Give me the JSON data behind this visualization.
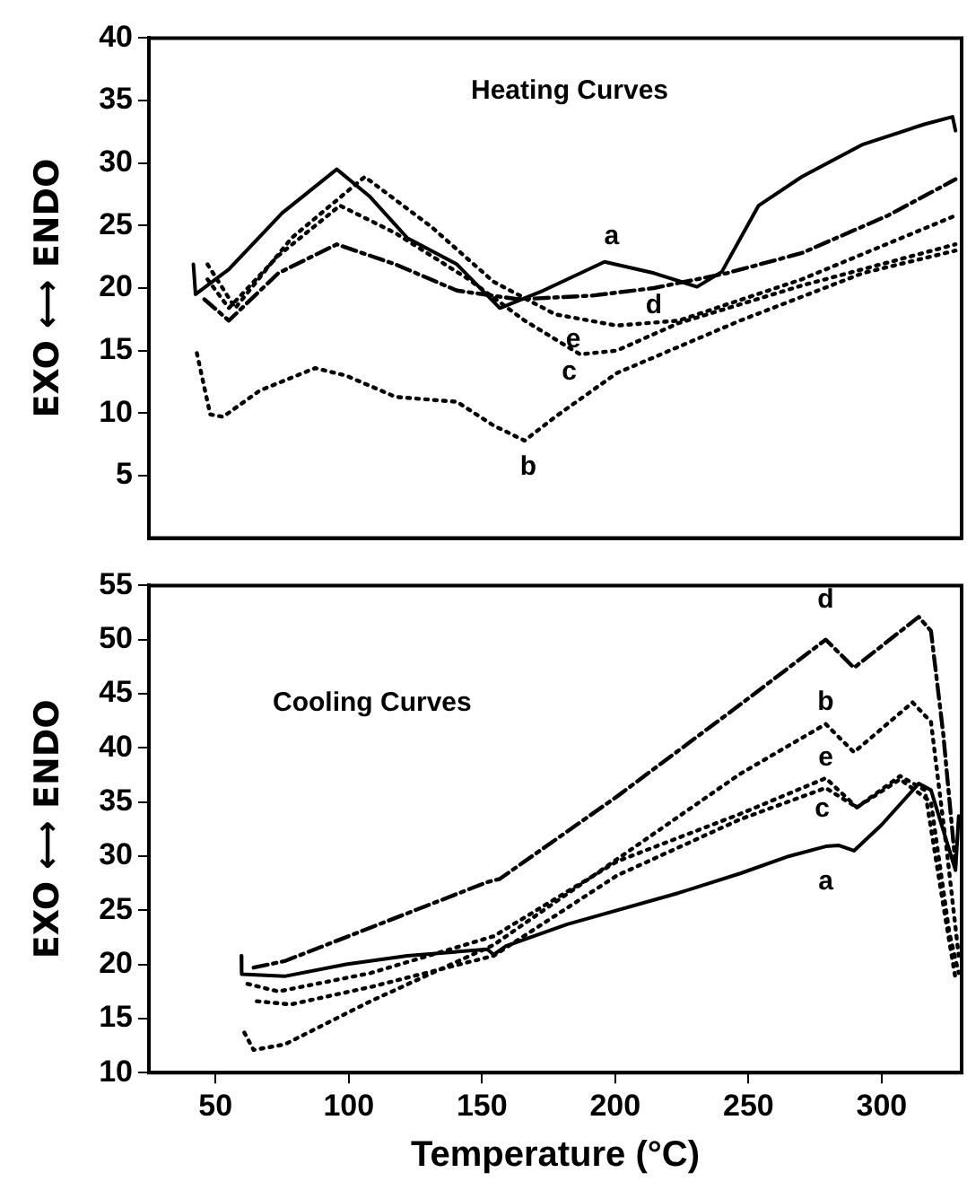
{
  "chart_data": [
    {
      "type": "line",
      "title": "Heating Curves",
      "ylabel": "EXO ⟷ ENDO",
      "xlim": [
        25,
        330
      ],
      "xticks": [
        50,
        100,
        150,
        200,
        250,
        300
      ],
      "ylim": [
        0,
        40
      ],
      "yticks": [
        5,
        10,
        15,
        20,
        25,
        30,
        35,
        40
      ],
      "tick_labels": "y",
      "grid": false,
      "legend": false,
      "marker": "none",
      "series": [
        {
          "name": "a",
          "color": "#000000",
          "line_style": "solid",
          "x": [
            41.7,
            42.5,
            55,
            75,
            95.5,
            108,
            122,
            140.6,
            156.7,
            173,
            196,
            214.5,
            230.7,
            240,
            253.8,
            270,
            293,
            316,
            326.6,
            327.7
          ],
          "values": [
            21.9,
            19.5,
            21.5,
            26,
            29.5,
            27.3,
            24,
            21.9,
            18.4,
            19.8,
            22.1,
            21.2,
            20.1,
            21.3,
            26.6,
            28.9,
            31.5,
            33.1,
            33.7,
            32.6
          ]
        },
        {
          "name": "b",
          "color": "#000000",
          "line_style": "dotted",
          "x": [
            43,
            48,
            52.8,
            66.6,
            87.4,
            99,
            117.5,
            140.6,
            154.4,
            166,
            177.5,
            200.6,
            246.9,
            293,
            327.7
          ],
          "values": [
            14.8,
            9.9,
            9.7,
            11.8,
            13.6,
            13,
            11.3,
            10.9,
            9,
            7.8,
            9.7,
            13.2,
            17.4,
            21.2,
            23
          ]
        },
        {
          "name": "c",
          "color": "#000000",
          "line_style": "dotted",
          "x": [
            47,
            55,
            73.6,
            96.7,
            117.5,
            145,
            166,
            186.8,
            200.6,
            223.8,
            270,
            327.7
          ],
          "values": [
            20.7,
            18.4,
            22.6,
            26.6,
            24.4,
            20.7,
            17.4,
            14.7,
            15,
            17.2,
            20.2,
            23.5
          ]
        },
        {
          "name": "d",
          "color": "#000000",
          "line_style": "dashdot",
          "x": [
            45.8,
            55,
            73.6,
            95.5,
            117.5,
            140.6,
            163.7,
            191.4,
            214.5,
            242,
            270,
            302.3,
            327.7
          ],
          "values": [
            19.1,
            17.4,
            21.2,
            23.5,
            21.9,
            19.8,
            19.1,
            19.4,
            20,
            21.2,
            22.8,
            25.8,
            28.7
          ]
        },
        {
          "name": "e",
          "color": "#000000",
          "line_style": "dotted",
          "x": [
            47,
            57.4,
            78.5,
            106,
            131,
            154.4,
            177.5,
            200.6,
            223.8,
            270,
            327.7
          ],
          "values": [
            21.9,
            18.4,
            24,
            28.9,
            24.9,
            20.5,
            17.9,
            17,
            17.4,
            20.7,
            25.8
          ]
        }
      ]
    },
    {
      "type": "line",
      "title": "Cooling Curves",
      "xlabel": "Temperature (°C)",
      "ylabel": "EXO ⟷ ENDO",
      "xlim": [
        25,
        330
      ],
      "xticks": [
        50,
        100,
        150,
        200,
        250,
        300
      ],
      "ylim": [
        10,
        55
      ],
      "yticks": [
        10,
        15,
        20,
        25,
        30,
        35,
        40,
        45,
        50,
        55
      ],
      "grid": false,
      "legend": false,
      "marker": "none",
      "series": [
        {
          "name": "a",
          "color": "#000000",
          "line_style": "solid",
          "x": [
            59.7,
            59.8,
            75.9,
            99,
            122,
            152,
            154.4,
            159,
            182,
            223.8,
            246.9,
            265.3,
            279,
            283.8,
            289.6,
            300,
            313.9,
            318.5,
            327.7,
            328.9
          ],
          "values": [
            20.8,
            19.1,
            18.9,
            20,
            20.8,
            21.4,
            20.9,
            21.7,
            23.7,
            26.6,
            28.4,
            30,
            30.9,
            31,
            30.5,
            32.9,
            36.7,
            36.1,
            28.7,
            33.7
          ]
        },
        {
          "name": "b",
          "color": "#000000",
          "line_style": "dotted",
          "x": [
            60.8,
            64.3,
            75.9,
            108.2,
            154.4,
            200.6,
            246.9,
            279,
            289.6,
            311.6,
            318.5,
            324.3,
            328.9
          ],
          "values": [
            13.7,
            12.1,
            12.6,
            16.6,
            21.8,
            29.7,
            37.6,
            42.2,
            39.6,
            44.2,
            42.4,
            30.8,
            20.8
          ]
        },
        {
          "name": "c",
          "color": "#000000",
          "line_style": "dotted",
          "x": [
            65.5,
            78.2,
            108,
            154.4,
            200.6,
            246.9,
            279,
            290.7,
            306.9,
            318.5,
            325.4,
            328.9
          ],
          "values": [
            16.6,
            16.3,
            17.9,
            20.8,
            28.2,
            33.4,
            36.3,
            34.5,
            37.1,
            35,
            22.9,
            19.2
          ]
        },
        {
          "name": "d",
          "color": "#000000",
          "line_style": "dashdot",
          "x": [
            64.3,
            75.9,
            152,
            156.7,
            200.6,
            246.9,
            279,
            289.6,
            313.9,
            318.5,
            323.1,
            327.7
          ],
          "values": [
            19.7,
            20.3,
            27.6,
            27.9,
            35.5,
            44,
            50,
            47.4,
            52.1,
            50.8,
            41.3,
            29.2
          ]
        },
        {
          "name": "e",
          "color": "#000000",
          "line_style": "dotted",
          "x": [
            62,
            73.6,
            108.2,
            154.4,
            200.6,
            246.9,
            279,
            290.7,
            306.9,
            316.2,
            323.1,
            327.7
          ],
          "values": [
            18.2,
            17.5,
            19.2,
            22.6,
            29.5,
            33.9,
            37.2,
            34.5,
            37.4,
            36.1,
            25.5,
            18.7
          ]
        }
      ]
    }
  ]
}
